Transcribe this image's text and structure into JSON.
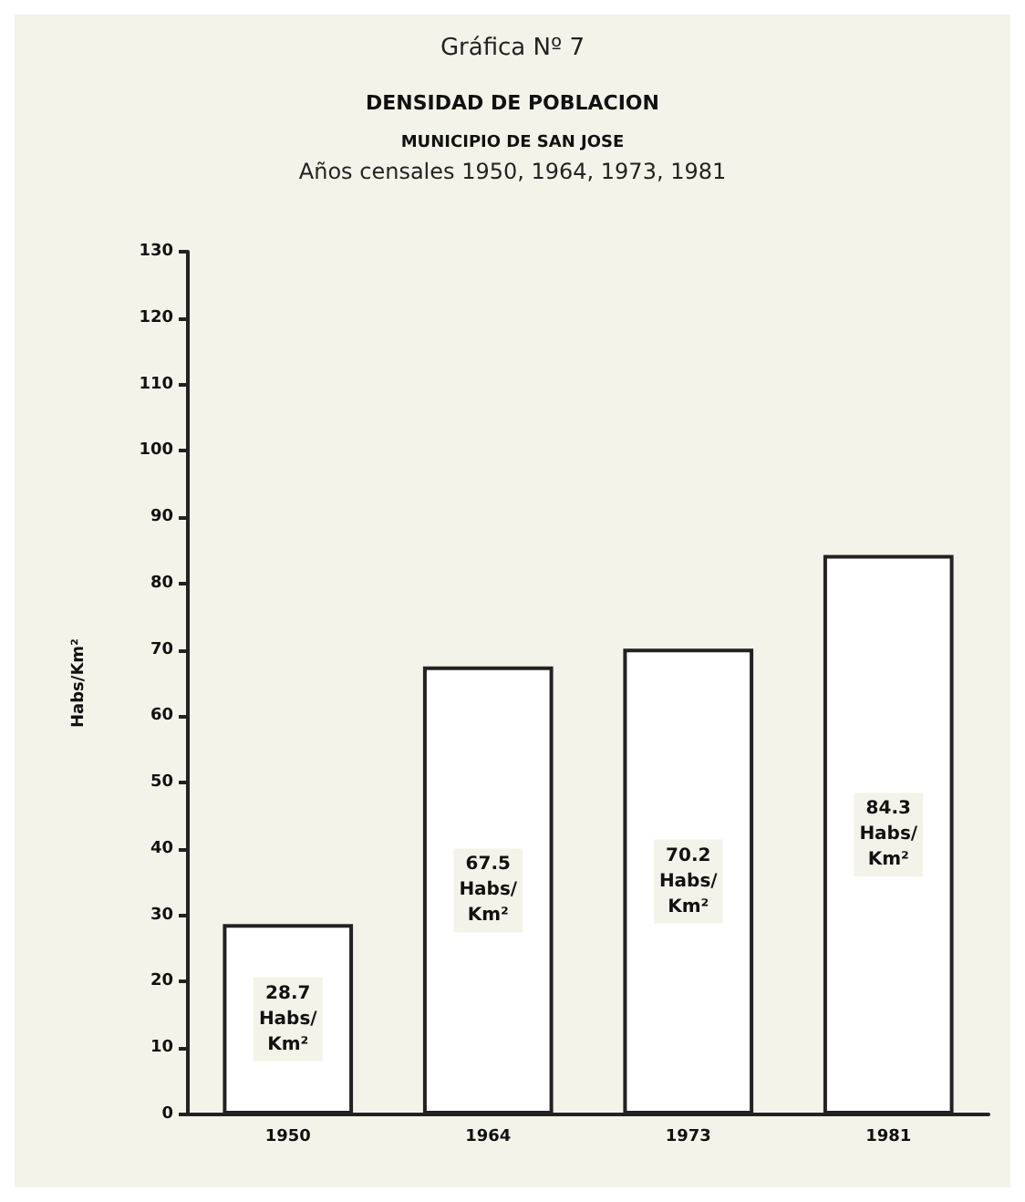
{
  "chart_data": {
    "type": "bar",
    "title": "DENSIDAD DE POBLACION",
    "subtitle": "MUNICIPIO DE SAN JOSE",
    "annotations": [
      "Gráfica Nº 7",
      "Años censales 1950, 1964, 1973, 1981"
    ],
    "ylabel": "Habs/Km²",
    "categories": [
      "1950",
      "1964",
      "1973",
      "1981"
    ],
    "values": [
      28.7,
      67.5,
      70.2,
      84.3
    ],
    "value_labels": [
      "28.7 Habs/ Km²",
      "67.5 Habs/ Km²",
      "70.2 Habs/ Km²",
      "84.3 Habs/ Km²"
    ],
    "color": "#ffffff",
    "ylim": [
      0,
      130
    ],
    "yticks": [
      0,
      10,
      20,
      30,
      40,
      50,
      60,
      70,
      80,
      90,
      100,
      110,
      120,
      130
    ],
    "grid": false
  }
}
